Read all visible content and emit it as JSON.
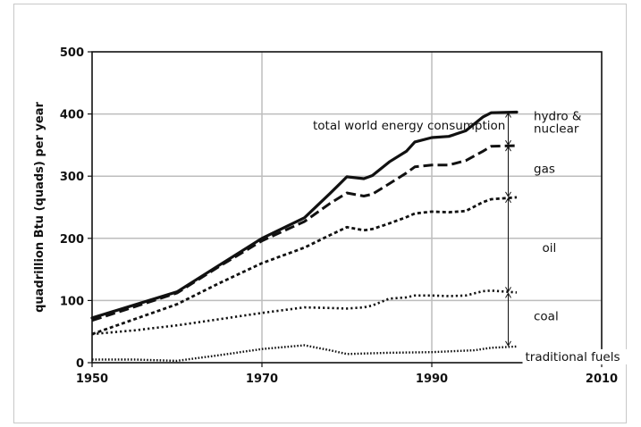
{
  "chart_data": {
    "type": "line",
    "title": "",
    "xlabel": "",
    "ylabel": "quadrillion Btu (quads) per year",
    "xlim": [
      1950,
      2010
    ],
    "ylim": [
      0,
      500
    ],
    "x_ticks": [
      "1950",
      "1970",
      "1990",
      "2010"
    ],
    "y_ticks": [
      "0",
      "100",
      "200",
      "300",
      "400",
      "500"
    ],
    "grid": true,
    "legend": "none",
    "series": [
      {
        "style": "solid",
        "points": [
          [
            1950,
            72
          ],
          [
            1955,
            93
          ],
          [
            1960,
            114
          ],
          [
            1965,
            157
          ],
          [
            1970,
            200
          ],
          [
            1975,
            233
          ],
          [
            1978,
            272
          ],
          [
            1980,
            299
          ],
          [
            1982,
            296
          ],
          [
            1983,
            301
          ],
          [
            1985,
            323
          ],
          [
            1987,
            340
          ],
          [
            1988,
            355
          ],
          [
            1990,
            362
          ],
          [
            1992,
            364
          ],
          [
            1994,
            373
          ],
          [
            1996,
            395
          ],
          [
            1997,
            402
          ],
          [
            2000,
            403
          ]
        ]
      },
      {
        "style": "dashed",
        "points": [
          [
            1950,
            68
          ],
          [
            1955,
            90
          ],
          [
            1960,
            112
          ],
          [
            1965,
            155
          ],
          [
            1970,
            196
          ],
          [
            1975,
            227
          ],
          [
            1978,
            256
          ],
          [
            1980,
            273
          ],
          [
            1982,
            268
          ],
          [
            1983,
            271
          ],
          [
            1985,
            288
          ],
          [
            1987,
            305
          ],
          [
            1988,
            315
          ],
          [
            1990,
            318
          ],
          [
            1992,
            318
          ],
          [
            1994,
            325
          ],
          [
            1996,
            340
          ],
          [
            1997,
            348
          ],
          [
            2000,
            349
          ]
        ]
      },
      {
        "style": "short-dash",
        "points": [
          [
            1950,
            46
          ],
          [
            1955,
            70
          ],
          [
            1960,
            94
          ],
          [
            1965,
            128
          ],
          [
            1970,
            160
          ],
          [
            1975,
            185
          ],
          [
            1978,
            205
          ],
          [
            1980,
            218
          ],
          [
            1982,
            213
          ],
          [
            1983,
            215
          ],
          [
            1985,
            224
          ],
          [
            1987,
            234
          ],
          [
            1988,
            240
          ],
          [
            1990,
            243
          ],
          [
            1992,
            242
          ],
          [
            1994,
            244
          ],
          [
            1996,
            258
          ],
          [
            1997,
            263
          ],
          [
            2000,
            266
          ]
        ]
      },
      {
        "style": "dotted",
        "points": [
          [
            1950,
            46
          ],
          [
            1955,
            52
          ],
          [
            1960,
            60
          ],
          [
            1965,
            70
          ],
          [
            1970,
            80
          ],
          [
            1975,
            89
          ],
          [
            1978,
            88
          ],
          [
            1980,
            87
          ],
          [
            1982,
            89
          ],
          [
            1983,
            92
          ],
          [
            1985,
            103
          ],
          [
            1987,
            105
          ],
          [
            1988,
            108
          ],
          [
            1990,
            108
          ],
          [
            1992,
            107
          ],
          [
            1994,
            108
          ],
          [
            1996,
            115
          ],
          [
            1997,
            116
          ],
          [
            2000,
            113
          ]
        ]
      },
      {
        "style": "fine-dotted",
        "points": [
          [
            1950,
            5
          ],
          [
            1955,
            5
          ],
          [
            1960,
            3
          ],
          [
            1965,
            12
          ],
          [
            1970,
            22
          ],
          [
            1975,
            28
          ],
          [
            1978,
            20
          ],
          [
            1980,
            14
          ],
          [
            1985,
            16
          ],
          [
            1990,
            17
          ],
          [
            1995,
            20
          ],
          [
            1997,
            24
          ],
          [
            2000,
            26
          ]
        ]
      }
    ],
    "annotations": [
      {
        "text": "total world energy consumption",
        "x": 1976,
        "y": 375
      },
      {
        "text": "hydro &",
        "x": 2002,
        "y": 390
      },
      {
        "text": "nuclear",
        "x": 2002,
        "y": 370
      },
      {
        "text": "gas",
        "x": 2002,
        "y": 305
      },
      {
        "text": "oil",
        "x": 2003,
        "y": 178
      },
      {
        "text": "coal",
        "x": 2002,
        "y": 68
      },
      {
        "text": "traditional fuels",
        "x": 2001,
        "y": 3
      }
    ],
    "range_arrows": [
      {
        "x": 1999,
        "y_from": 349,
        "y_to": 403
      },
      {
        "x": 1999,
        "y_from": 266,
        "y_to": 349
      },
      {
        "x": 1999,
        "y_from": 113,
        "y_to": 266
      },
      {
        "x": 1999,
        "y_from": 26,
        "y_to": 113
      }
    ]
  }
}
